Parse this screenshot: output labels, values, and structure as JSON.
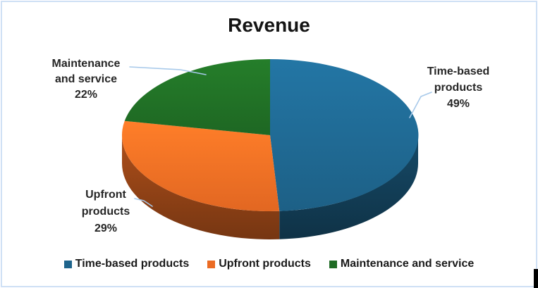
{
  "chart_data": {
    "type": "pie",
    "style": "3d",
    "title": "Revenue",
    "categories": [
      "Time-based products",
      "Upfront products",
      "Maintenance and service"
    ],
    "values": [
      49,
      29,
      22
    ],
    "unit": "percent",
    "colors": [
      "#1E648C",
      "#EB6B23",
      "#1F6B24"
    ],
    "start_angle": "top",
    "direction": "clockwise",
    "legend_position": "bottom",
    "data_labels": "category name and percentage outside slices with leader lines"
  },
  "callouts": [
    {
      "id": "time-based",
      "lines": [
        "Time-based",
        "products",
        "49%"
      ]
    },
    {
      "id": "upfront",
      "lines": [
        "Upfront",
        "products",
        "29%"
      ]
    },
    {
      "id": "maintenance",
      "lines": [
        "Maintenance",
        "and service",
        "22%"
      ]
    }
  ],
  "legend": {
    "items": [
      {
        "label": "Time-based products",
        "color": "#1E648C"
      },
      {
        "label": "Upfront products",
        "color": "#EB6B23"
      },
      {
        "label": "Maintenance and service",
        "color": "#1F6B24"
      }
    ]
  },
  "frame": {
    "background": "#FFFFFF",
    "border_color": "#CFE0F5",
    "leader_line_color": "#A7C9EA"
  }
}
